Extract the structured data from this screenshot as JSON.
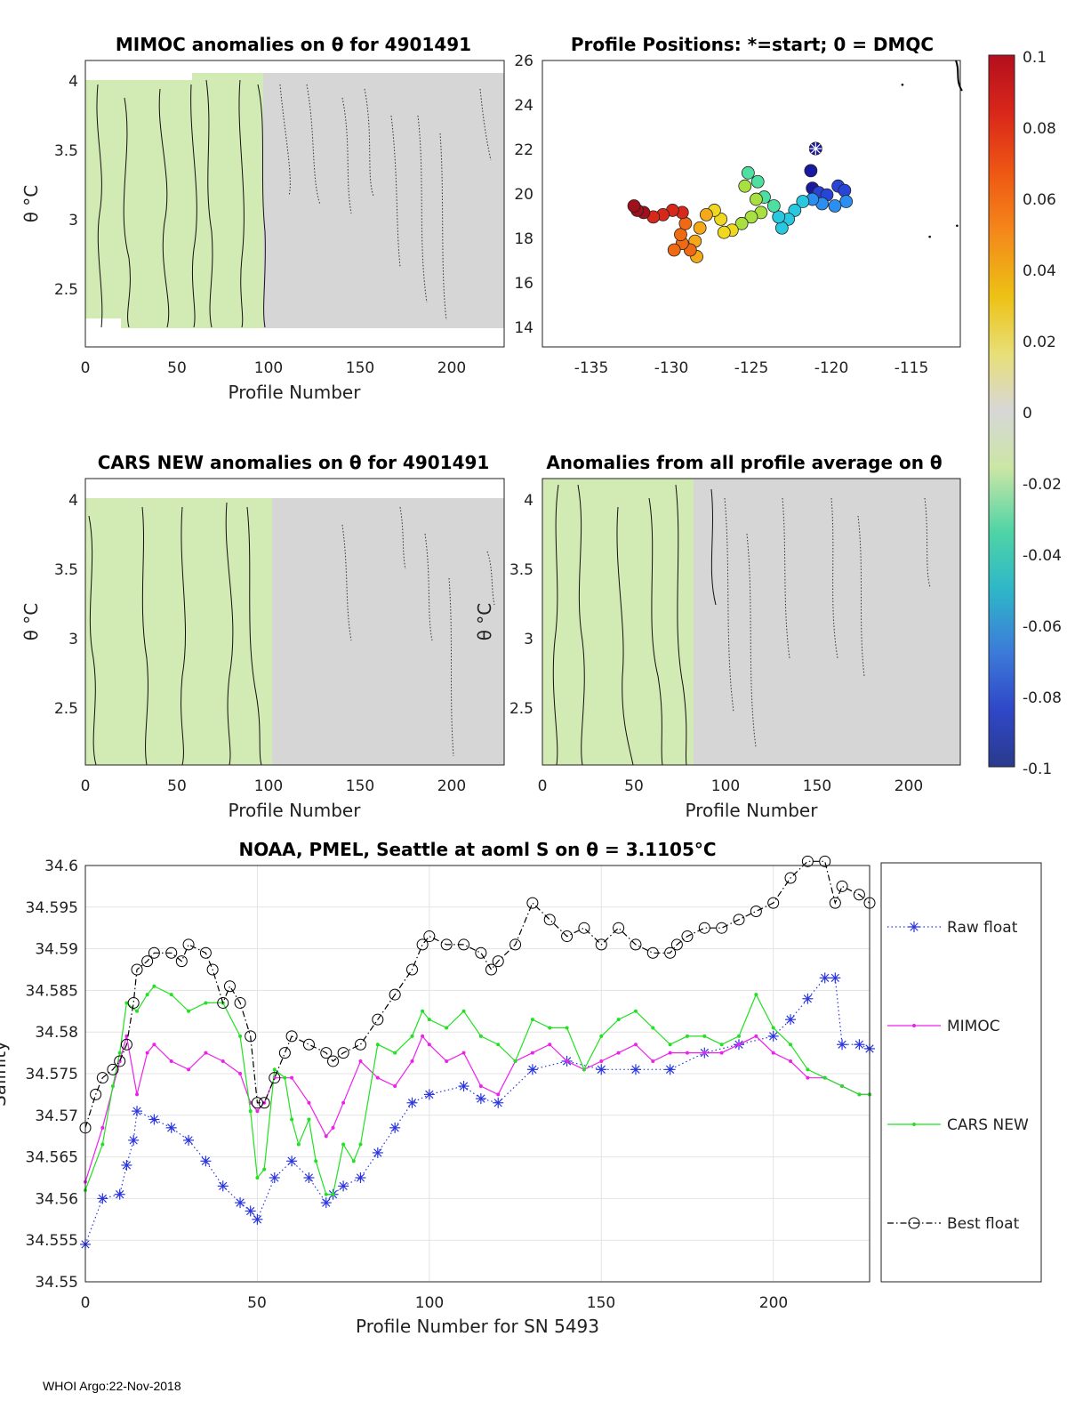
{
  "footer": "WHOI Argo:22-Nov-2018",
  "colors": {
    "raw": "#2a35e0",
    "mimoc": "#ee20ee",
    "cars": "#22e022",
    "best": "#000000",
    "field_gray": "#d5d5d5",
    "field_green": "#d2eab4"
  },
  "chart_data": [
    {
      "type": "heatmap",
      "title": "MIMOC anomalies on θ  for 4901491",
      "xlabel": "Profile Number",
      "ylabel": "θ °C",
      "xlim": [
        0,
        228
      ],
      "ylim": [
        2.05,
        4.15
      ],
      "xticks": [
        0,
        50,
        100,
        150,
        200
      ],
      "yticks": [
        2.5,
        3,
        3.5,
        4
      ],
      "green_bands": [
        [
          0,
          96
        ]
      ]
    },
    {
      "type": "scatter",
      "title": "Profile Positions: *=start; 0 = DMQC",
      "xlabel": "",
      "ylabel": "",
      "xlim": [
        -138,
        -112
      ],
      "ylim": [
        13,
        26
      ],
      "xticks": [
        -135,
        -130,
        -125,
        -120,
        -115
      ],
      "yticks": [
        14,
        16,
        18,
        20,
        22,
        24,
        26
      ],
      "start": [
        -121,
        22
      ],
      "track": [
        [
          -121,
          22
        ],
        [
          -121.3,
          21
        ],
        [
          -121.2,
          20.2
        ],
        [
          -120.8,
          20
        ],
        [
          -120.3,
          19.9
        ],
        [
          -119.6,
          20.3
        ],
        [
          -119.2,
          20.1
        ],
        [
          -119.1,
          19.6
        ],
        [
          -119.8,
          19.4
        ],
        [
          -120.6,
          19.5
        ],
        [
          -121.2,
          19.7
        ],
        [
          -121.8,
          19.6
        ],
        [
          -122.3,
          19.2
        ],
        [
          -122.7,
          18.8
        ],
        [
          -123.1,
          18.4
        ],
        [
          -123.3,
          18.9
        ],
        [
          -123.6,
          19.4
        ],
        [
          -124.2,
          19.8
        ],
        [
          -124.6,
          20.5
        ],
        [
          -125.2,
          20.9
        ],
        [
          -125.4,
          20.3
        ],
        [
          -124.7,
          19.7
        ],
        [
          -124.4,
          19.1
        ],
        [
          -125.0,
          18.9
        ],
        [
          -125.6,
          18.6
        ],
        [
          -126.2,
          18.3
        ],
        [
          -126.7,
          18.2
        ],
        [
          -126.9,
          18.8
        ],
        [
          -127.3,
          19.2
        ],
        [
          -127.8,
          19.0
        ],
        [
          -128.2,
          18.4
        ],
        [
          -128.5,
          17.8
        ],
        [
          -128.4,
          17.1
        ],
        [
          -128.8,
          17.4
        ],
        [
          -129.3,
          17.7
        ],
        [
          -129.8,
          17.4
        ],
        [
          -129.4,
          18.1
        ],
        [
          -129.1,
          18.6
        ],
        [
          -129.3,
          19.1
        ],
        [
          -129.9,
          19.2
        ],
        [
          -130.5,
          19.0
        ],
        [
          -131.1,
          18.9
        ],
        [
          -131.7,
          19.1
        ],
        [
          -132.1,
          19.2
        ],
        [
          -132.3,
          19.4
        ]
      ],
      "stray_points": [
        [
          -115.6,
          24.9
        ],
        [
          -113.9,
          18
        ],
        [
          -112.2,
          18.5
        ]
      ],
      "colorbar": {
        "ticks": [
          "0.1",
          "0.08",
          "0.06",
          "0.04",
          "0.02",
          "0",
          "-0.02",
          "-0.04",
          "-0.06",
          "-0.08",
          "-0.1"
        ]
      }
    },
    {
      "type": "heatmap",
      "title": "CARS NEW anomalies on θ for 4901491",
      "xlabel": "Profile Number",
      "ylabel": "θ °C",
      "xlim": [
        0,
        228
      ],
      "ylim": [
        2.05,
        4.15
      ],
      "xticks": [
        0,
        50,
        100,
        150,
        200
      ],
      "yticks": [
        2.5,
        3,
        3.5,
        4
      ],
      "green_bands": [
        [
          0,
          100
        ]
      ]
    },
    {
      "type": "heatmap",
      "title": "Anomalies from all profile average on θ",
      "xlabel": "Profile Number",
      "ylabel": "θ °C",
      "xlim": [
        0,
        228
      ],
      "ylim": [
        2.05,
        4.15
      ],
      "xticks": [
        0,
        50,
        100,
        150,
        200
      ],
      "yticks": [
        2.5,
        3,
        3.5,
        4
      ],
      "green_bands": [
        [
          0,
          82
        ]
      ]
    },
    {
      "type": "line",
      "title": "NOAA, PMEL, Seattle at aoml S on θ = 3.1105°C",
      "xlabel": "Profile Number for SN 5493",
      "ylabel": "Salinity",
      "xlim": [
        0,
        228
      ],
      "ylim": [
        34.55,
        34.6
      ],
      "xticks": [
        0,
        50,
        100,
        150,
        200
      ],
      "yticks": [
        34.55,
        34.555,
        34.56,
        34.565,
        34.57,
        34.575,
        34.58,
        34.585,
        34.59,
        34.595,
        34.6
      ],
      "ytick_labels": [
        "34.55",
        "34.555",
        "34.56",
        "34.565",
        "34.57",
        "34.575",
        "34.58",
        "34.585",
        "34.59",
        "34.595",
        "34.6"
      ],
      "series": [
        {
          "name": "Raw float",
          "marker": "asterisk",
          "style": "dotted",
          "x": [
            0,
            5,
            10,
            12,
            14,
            15,
            20,
            25,
            30,
            35,
            40,
            45,
            48,
            50,
            55,
            60,
            65,
            70,
            72,
            75,
            80,
            85,
            90,
            95,
            100,
            110,
            115,
            120,
            130,
            140,
            150,
            160,
            170,
            180,
            190,
            200,
            205,
            210,
            215,
            218,
            220,
            225,
            228
          ],
          "values": [
            34.5545,
            34.56,
            34.5605,
            34.564,
            34.567,
            34.5705,
            34.5695,
            34.5685,
            34.567,
            34.5645,
            34.5615,
            34.5595,
            34.5585,
            34.5575,
            34.5625,
            34.5645,
            34.5625,
            34.5595,
            34.5605,
            34.5615,
            34.5625,
            34.5655,
            34.5685,
            34.5715,
            34.5725,
            34.5735,
            34.572,
            34.5715,
            34.5755,
            34.5765,
            34.5755,
            34.5755,
            34.5755,
            34.5775,
            34.5785,
            34.5795,
            34.5815,
            34.584,
            34.5865,
            34.5865,
            34.5785,
            34.5785,
            34.578
          ]
        },
        {
          "name": "MIMOC",
          "marker": "dot",
          "style": "solid",
          "x": [
            0,
            5,
            10,
            12,
            15,
            18,
            20,
            25,
            30,
            35,
            40,
            45,
            48,
            50,
            52,
            55,
            60,
            65,
            70,
            72,
            75,
            80,
            85,
            90,
            95,
            98,
            100,
            105,
            110,
            115,
            120,
            125,
            130,
            135,
            140,
            145,
            150,
            155,
            160,
            165,
            170,
            175,
            180,
            185,
            190,
            195,
            200,
            205,
            210,
            215,
            220,
            225,
            228
          ],
          "values": [
            34.562,
            34.5685,
            34.5765,
            34.5795,
            34.5725,
            34.5775,
            34.5785,
            34.5765,
            34.5755,
            34.5775,
            34.5765,
            34.575,
            34.5715,
            34.5705,
            34.5715,
            34.5745,
            34.5745,
            34.5715,
            34.5675,
            34.5685,
            34.5715,
            34.5765,
            34.5745,
            34.5735,
            34.5765,
            34.5795,
            34.5785,
            34.5765,
            34.5775,
            34.5735,
            34.5725,
            34.5765,
            34.5775,
            34.5785,
            34.5765,
            34.5755,
            34.5765,
            34.5775,
            34.5785,
            34.5765,
            34.5775,
            34.5775,
            34.5775,
            34.5775,
            34.5785,
            34.5795,
            34.5775,
            34.5765,
            34.5745,
            34.5745,
            34.5735,
            34.5725,
            34.5725
          ]
        },
        {
          "name": "CARS NEW",
          "marker": "dot",
          "style": "solid",
          "x": [
            0,
            5,
            8,
            10,
            12,
            15,
            18,
            20,
            25,
            30,
            35,
            40,
            45,
            48,
            50,
            52,
            55,
            58,
            60,
            62,
            65,
            67,
            70,
            72,
            75,
            78,
            80,
            85,
            90,
            95,
            98,
            100,
            105,
            110,
            115,
            120,
            125,
            130,
            135,
            140,
            145,
            150,
            155,
            160,
            165,
            170,
            175,
            180,
            185,
            190,
            195,
            200,
            205,
            210,
            215,
            220,
            225,
            228
          ],
          "values": [
            34.561,
            34.5665,
            34.5735,
            34.5775,
            34.5835,
            34.5825,
            34.5845,
            34.5855,
            34.5845,
            34.5825,
            34.5835,
            34.5835,
            34.5795,
            34.5705,
            34.5625,
            34.5635,
            34.5755,
            34.5745,
            34.5695,
            34.5665,
            34.5695,
            34.5645,
            34.5605,
            34.5605,
            34.5665,
            34.5645,
            34.5665,
            34.5785,
            34.5775,
            34.5795,
            34.5825,
            34.5815,
            34.5805,
            34.5825,
            34.5795,
            34.5785,
            34.5765,
            34.5815,
            34.5805,
            34.5805,
            34.5755,
            34.5795,
            34.5815,
            34.5825,
            34.5805,
            34.5785,
            34.5795,
            34.5795,
            34.5785,
            34.5795,
            34.5845,
            34.5805,
            34.5785,
            34.5755,
            34.5745,
            34.5735,
            34.5725,
            34.5725
          ]
        },
        {
          "name": "Best float",
          "marker": "circle",
          "style": "dashdot",
          "x": [
            0,
            3,
            5,
            8,
            10,
            12,
            14,
            15,
            18,
            20,
            25,
            28,
            30,
            35,
            37,
            40,
            42,
            45,
            48,
            50,
            52,
            55,
            58,
            60,
            65,
            70,
            72,
            75,
            80,
            85,
            90,
            95,
            98,
            100,
            105,
            110,
            115,
            118,
            120,
            125,
            130,
            135,
            140,
            145,
            150,
            155,
            160,
            165,
            170,
            172,
            175,
            180,
            185,
            190,
            195,
            200,
            205,
            210,
            215,
            218,
            220,
            225,
            228
          ],
          "values": [
            34.5685,
            34.5725,
            34.5745,
            34.5755,
            34.5765,
            34.5785,
            34.5835,
            34.5875,
            34.5885,
            34.5895,
            34.5895,
            34.5885,
            34.5905,
            34.5895,
            34.5875,
            34.5835,
            34.5855,
            34.5835,
            34.5795,
            34.5715,
            34.5715,
            34.5745,
            34.5775,
            34.5795,
            34.5785,
            34.5775,
            34.5765,
            34.5775,
            34.5785,
            34.5815,
            34.5845,
            34.5875,
            34.5905,
            34.5915,
            34.5905,
            34.5905,
            34.5895,
            34.5875,
            34.5885,
            34.5905,
            34.5955,
            34.5935,
            34.5915,
            34.5925,
            34.5905,
            34.5925,
            34.5905,
            34.5895,
            34.5895,
            34.5905,
            34.5915,
            34.5925,
            34.5925,
            34.5935,
            34.5945,
            34.5955,
            34.5985,
            34.6005,
            34.6005,
            34.5955,
            34.5975,
            34.5965,
            34.5955
          ]
        }
      ]
    }
  ]
}
